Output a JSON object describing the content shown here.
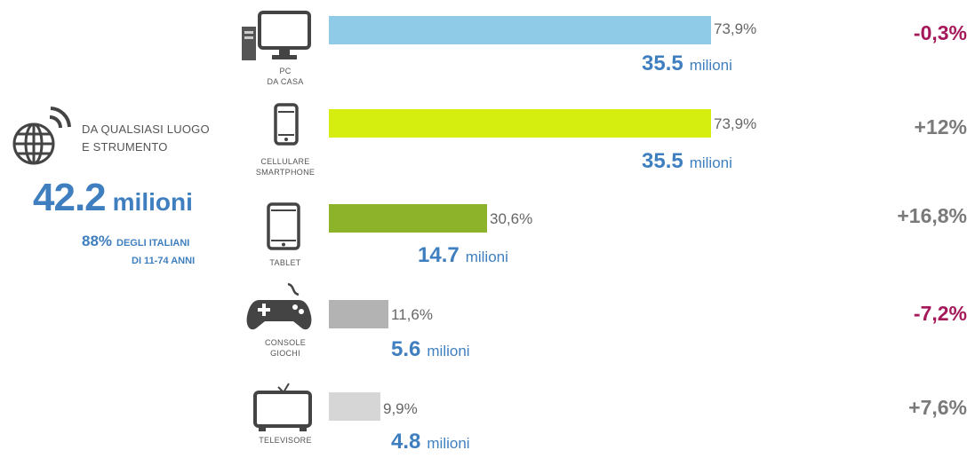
{
  "summary": {
    "line1": "DA QUALSIASI LUOGO",
    "line2": "E STRUMENTO",
    "total_value": "42.2",
    "total_unit": "milioni",
    "share_pct": "88%",
    "share_text_line1": "DEGLI ITALIANI",
    "share_text_line2": "DI 11-74 ANNI"
  },
  "chart_data": {
    "type": "bar",
    "orientation": "horizontal",
    "xlim": [
      0,
      100
    ],
    "categories": [
      "PC DA CASA",
      "CELLULARE SMARTPHONE",
      "TABLET",
      "CONSOLE GIOCHI",
      "TELEVISORE"
    ],
    "values": [
      73.9,
      73.9,
      30.6,
      11.6,
      9.9
    ],
    "rows": [
      {
        "label_line1": "PC",
        "label_line2": "DA CASA",
        "icon": "desktop-computer-icon",
        "value": 73.9,
        "pct_label": "73,9%",
        "millions": "35.5",
        "unit": "milioni",
        "change": "-0,3%",
        "bar_color": "#8fcbe6",
        "change_color": "#a5195a"
      },
      {
        "label_line1": "CELLULARE",
        "label_line2": "SMARTPHONE",
        "icon": "smartphone-icon",
        "value": 73.9,
        "pct_label": "73,9%",
        "millions": "35.5",
        "unit": "milioni",
        "change": "+12%",
        "bar_color": "#d5ed0f",
        "change_color": "#7a7a7a"
      },
      {
        "label_line1": "TABLET",
        "label_line2": "",
        "icon": "tablet-icon",
        "value": 30.6,
        "pct_label": "30,6%",
        "millions": "14.7",
        "unit": "milioni",
        "change": "+16,8%",
        "bar_color": "#8cb329",
        "change_color": "#7a7a7a"
      },
      {
        "label_line1": "CONSOLE",
        "label_line2": "GIOCHI",
        "icon": "gamepad-icon",
        "value": 11.6,
        "pct_label": "11,6%",
        "millions": "5.6",
        "unit": "milioni",
        "change": "-7,2%",
        "bar_color": "#b3b3b3",
        "change_color": "#a5195a"
      },
      {
        "label_line1": "TELEVISORE",
        "label_line2": "",
        "icon": "television-icon",
        "value": 9.9,
        "pct_label": "9,9%",
        "millions": "4.8",
        "unit": "milioni",
        "change": "+7,6%",
        "bar_color": "#d6d6d6",
        "change_color": "#7a7a7a"
      }
    ]
  },
  "colors": {
    "accent_blue": "#3f7fc0",
    "negative_change": "#a5195a",
    "positive_change": "#7a7a7a"
  }
}
